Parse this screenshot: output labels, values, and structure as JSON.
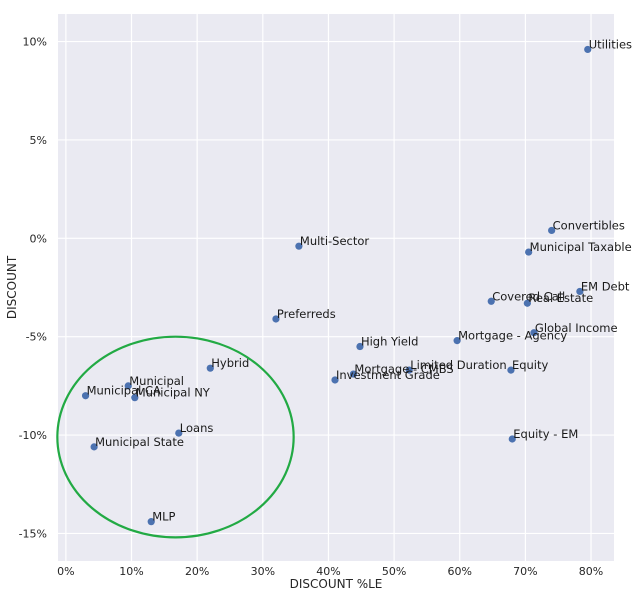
{
  "chart_data": {
    "type": "scatter",
    "xlabel": "DISCOUNT %LE",
    "ylabel": "DISCOUNT",
    "xlim": [
      -1.2,
      83.5
    ],
    "ylim": [
      -16.4,
      11.4
    ],
    "x_ticks": [
      0,
      10,
      20,
      30,
      40,
      50,
      60,
      70,
      80
    ],
    "x_tick_labels": [
      "0%",
      "10%",
      "20%",
      "30%",
      "40%",
      "50%",
      "60%",
      "70%",
      "80%"
    ],
    "y_ticks": [
      10,
      5,
      0,
      -5,
      -10,
      -15
    ],
    "y_tick_labels": [
      "10%",
      "5%",
      "0%",
      "-5%",
      "-10%",
      "-15%"
    ],
    "grid": true,
    "point_color": "#4c72b0",
    "background_color": "#eaeaf2",
    "points": [
      {
        "label": "Utilities",
        "x": 79.5,
        "y": 9.6
      },
      {
        "label": "Convertibles",
        "x": 74.0,
        "y": 0.4
      },
      {
        "label": "Municipal Taxable",
        "x": 70.5,
        "y": -0.7
      },
      {
        "label": "Multi-Sector",
        "x": 35.5,
        "y": -0.4
      },
      {
        "label": "EM Debt",
        "x": 78.3,
        "y": -2.7
      },
      {
        "label": "Covered Call",
        "x": 64.8,
        "y": -3.2
      },
      {
        "label": "Real Estate",
        "x": 70.3,
        "y": -3.3
      },
      {
        "label": "Preferreds",
        "x": 32.0,
        "y": -4.1
      },
      {
        "label": "Global Income",
        "x": 71.3,
        "y": -4.8
      },
      {
        "label": "Mortgage - Agency",
        "x": 59.6,
        "y": -5.2
      },
      {
        "label": "High Yield",
        "x": 44.8,
        "y": -5.5
      },
      {
        "label": "Hybrid",
        "x": 22.0,
        "y": -6.6
      },
      {
        "label": "Limited Duration",
        "x": 52.3,
        "y": -6.7
      },
      {
        "label": "Equity",
        "x": 67.8,
        "y": -6.7
      },
      {
        "label": "Mortgage - CMBS",
        "x": 43.8,
        "y": -6.9
      },
      {
        "label": "Investment Grade",
        "x": 41.0,
        "y": -7.2
      },
      {
        "label": "Municipal",
        "x": 9.5,
        "y": -7.5
      },
      {
        "label": "Municipal CA",
        "x": 3.0,
        "y": -8.0
      },
      {
        "label": "Municipal NY",
        "x": 10.5,
        "y": -8.1
      },
      {
        "label": "Loans",
        "x": 17.2,
        "y": -9.9
      },
      {
        "label": "Equity - EM",
        "x": 68.0,
        "y": -10.2
      },
      {
        "label": "Municipal State",
        "x": 4.3,
        "y": -10.6
      },
      {
        "label": "MLP",
        "x": 13.0,
        "y": -14.4
      }
    ],
    "annotation": {
      "shape": "ellipse",
      "color": "#22aa44",
      "cx": 16.7,
      "cy": -10.1,
      "rx": 18.0,
      "ry": 5.1
    }
  }
}
